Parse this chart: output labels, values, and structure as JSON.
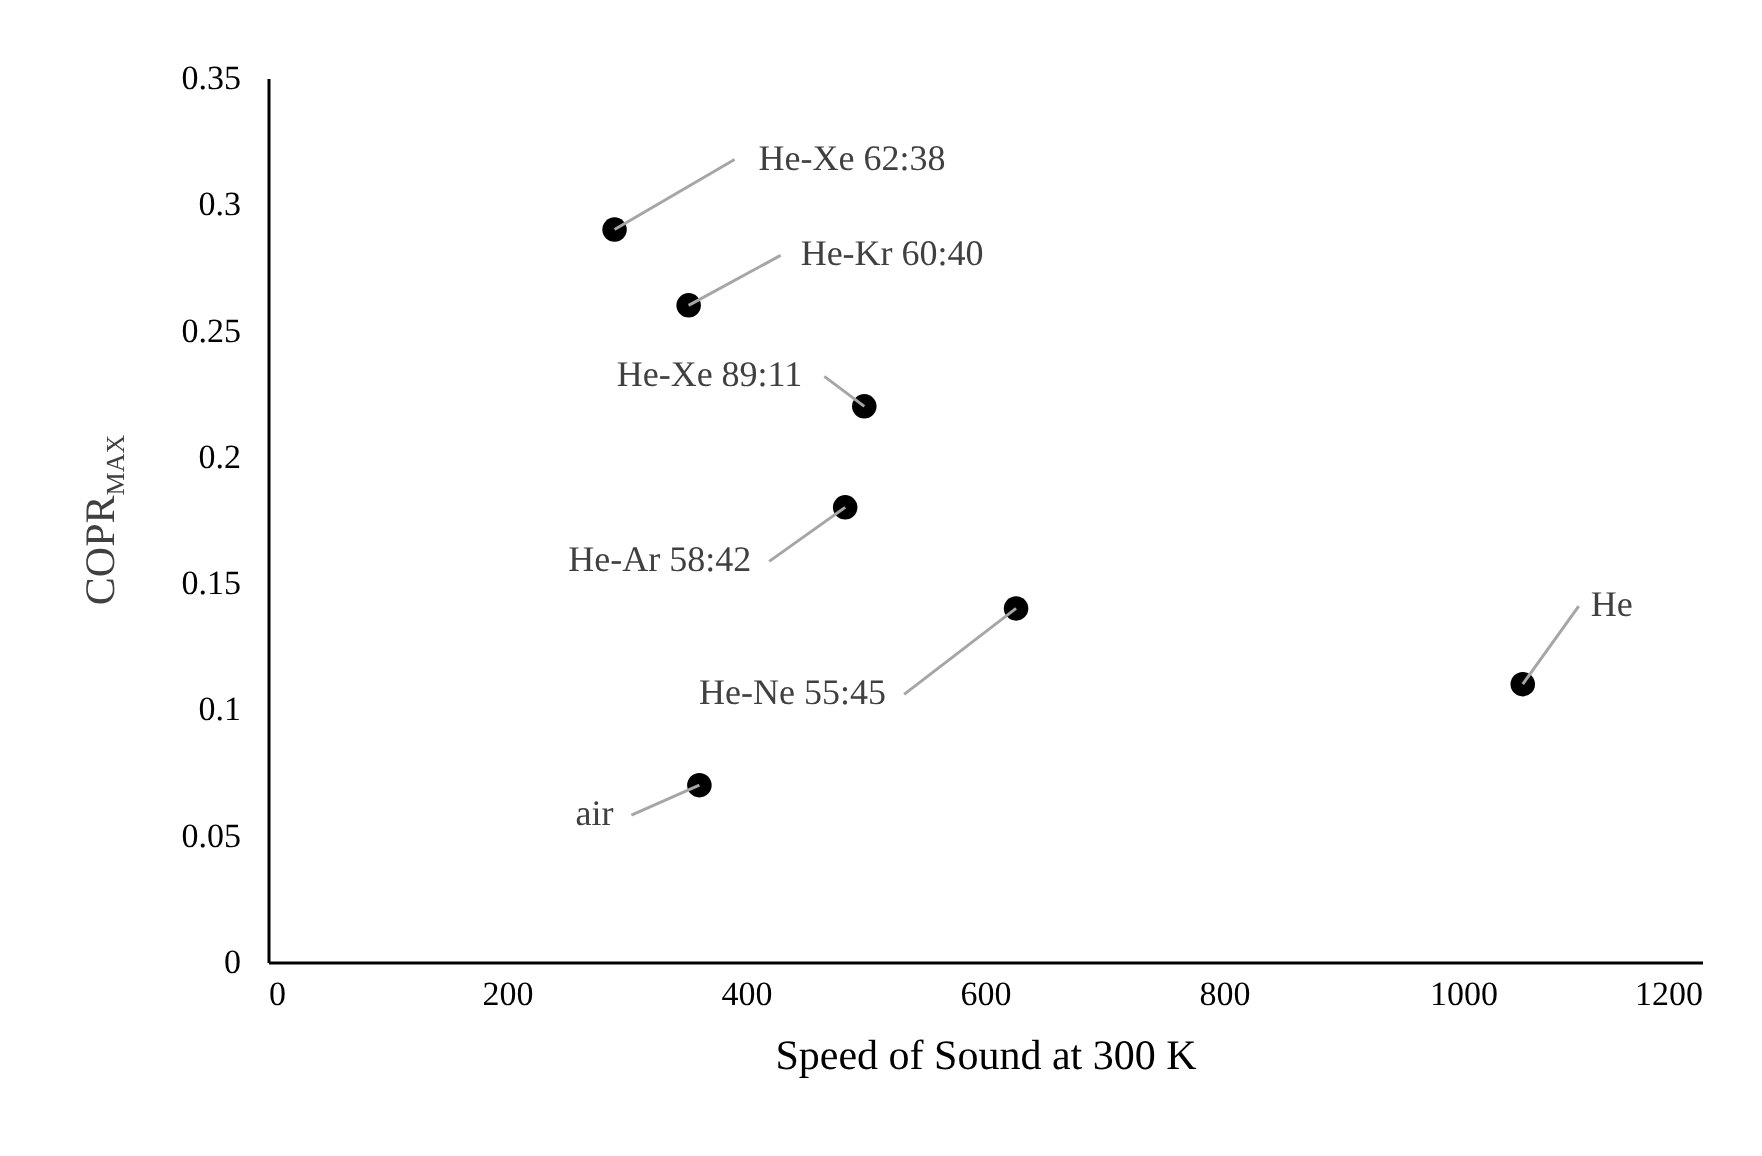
{
  "chart_data": {
    "type": "scatter",
    "xlabel": "Speed of Sound at 300 K",
    "ylabel": "COPR$_{MAX}$",
    "x": [
      290,
      352,
      499,
      483,
      626,
      1050,
      361
    ],
    "series": [
      {
        "color": "#000000",
        "values": [
          0.29,
          0.26,
          0.22,
          0.18,
          0.14,
          0.11,
          0.07
        ]
      }
    ],
    "marker": "circle",
    "xlim": [
      0,
      1200
    ],
    "xticks": [
      0,
      200,
      400,
      600,
      800,
      1000,
      1200
    ],
    "ylim": [
      0,
      0.35
    ],
    "yticks": [
      0,
      0.05,
      0.1,
      0.15,
      0.2,
      0.25,
      0.3,
      0.35
    ],
    "annotations": [
      {
        "text": "He-Xe 62:38",
        "x": 290,
        "y": 0.29
      },
      {
        "text": "He-Kr 60:40",
        "x": 352,
        "y": 0.26
      },
      {
        "text": "He-Xe 89:11",
        "x": 499,
        "y": 0.22
      },
      {
        "text": "He-Ar 58:42",
        "x": 483,
        "y": 0.18
      },
      {
        "text": "He-Ne 55:45",
        "x": 626,
        "y": 0.14
      },
      {
        "text": "He",
        "x": 1050,
        "y": 0.11
      },
      {
        "text": "air",
        "x": 361,
        "y": 0.07
      }
    ]
  }
}
